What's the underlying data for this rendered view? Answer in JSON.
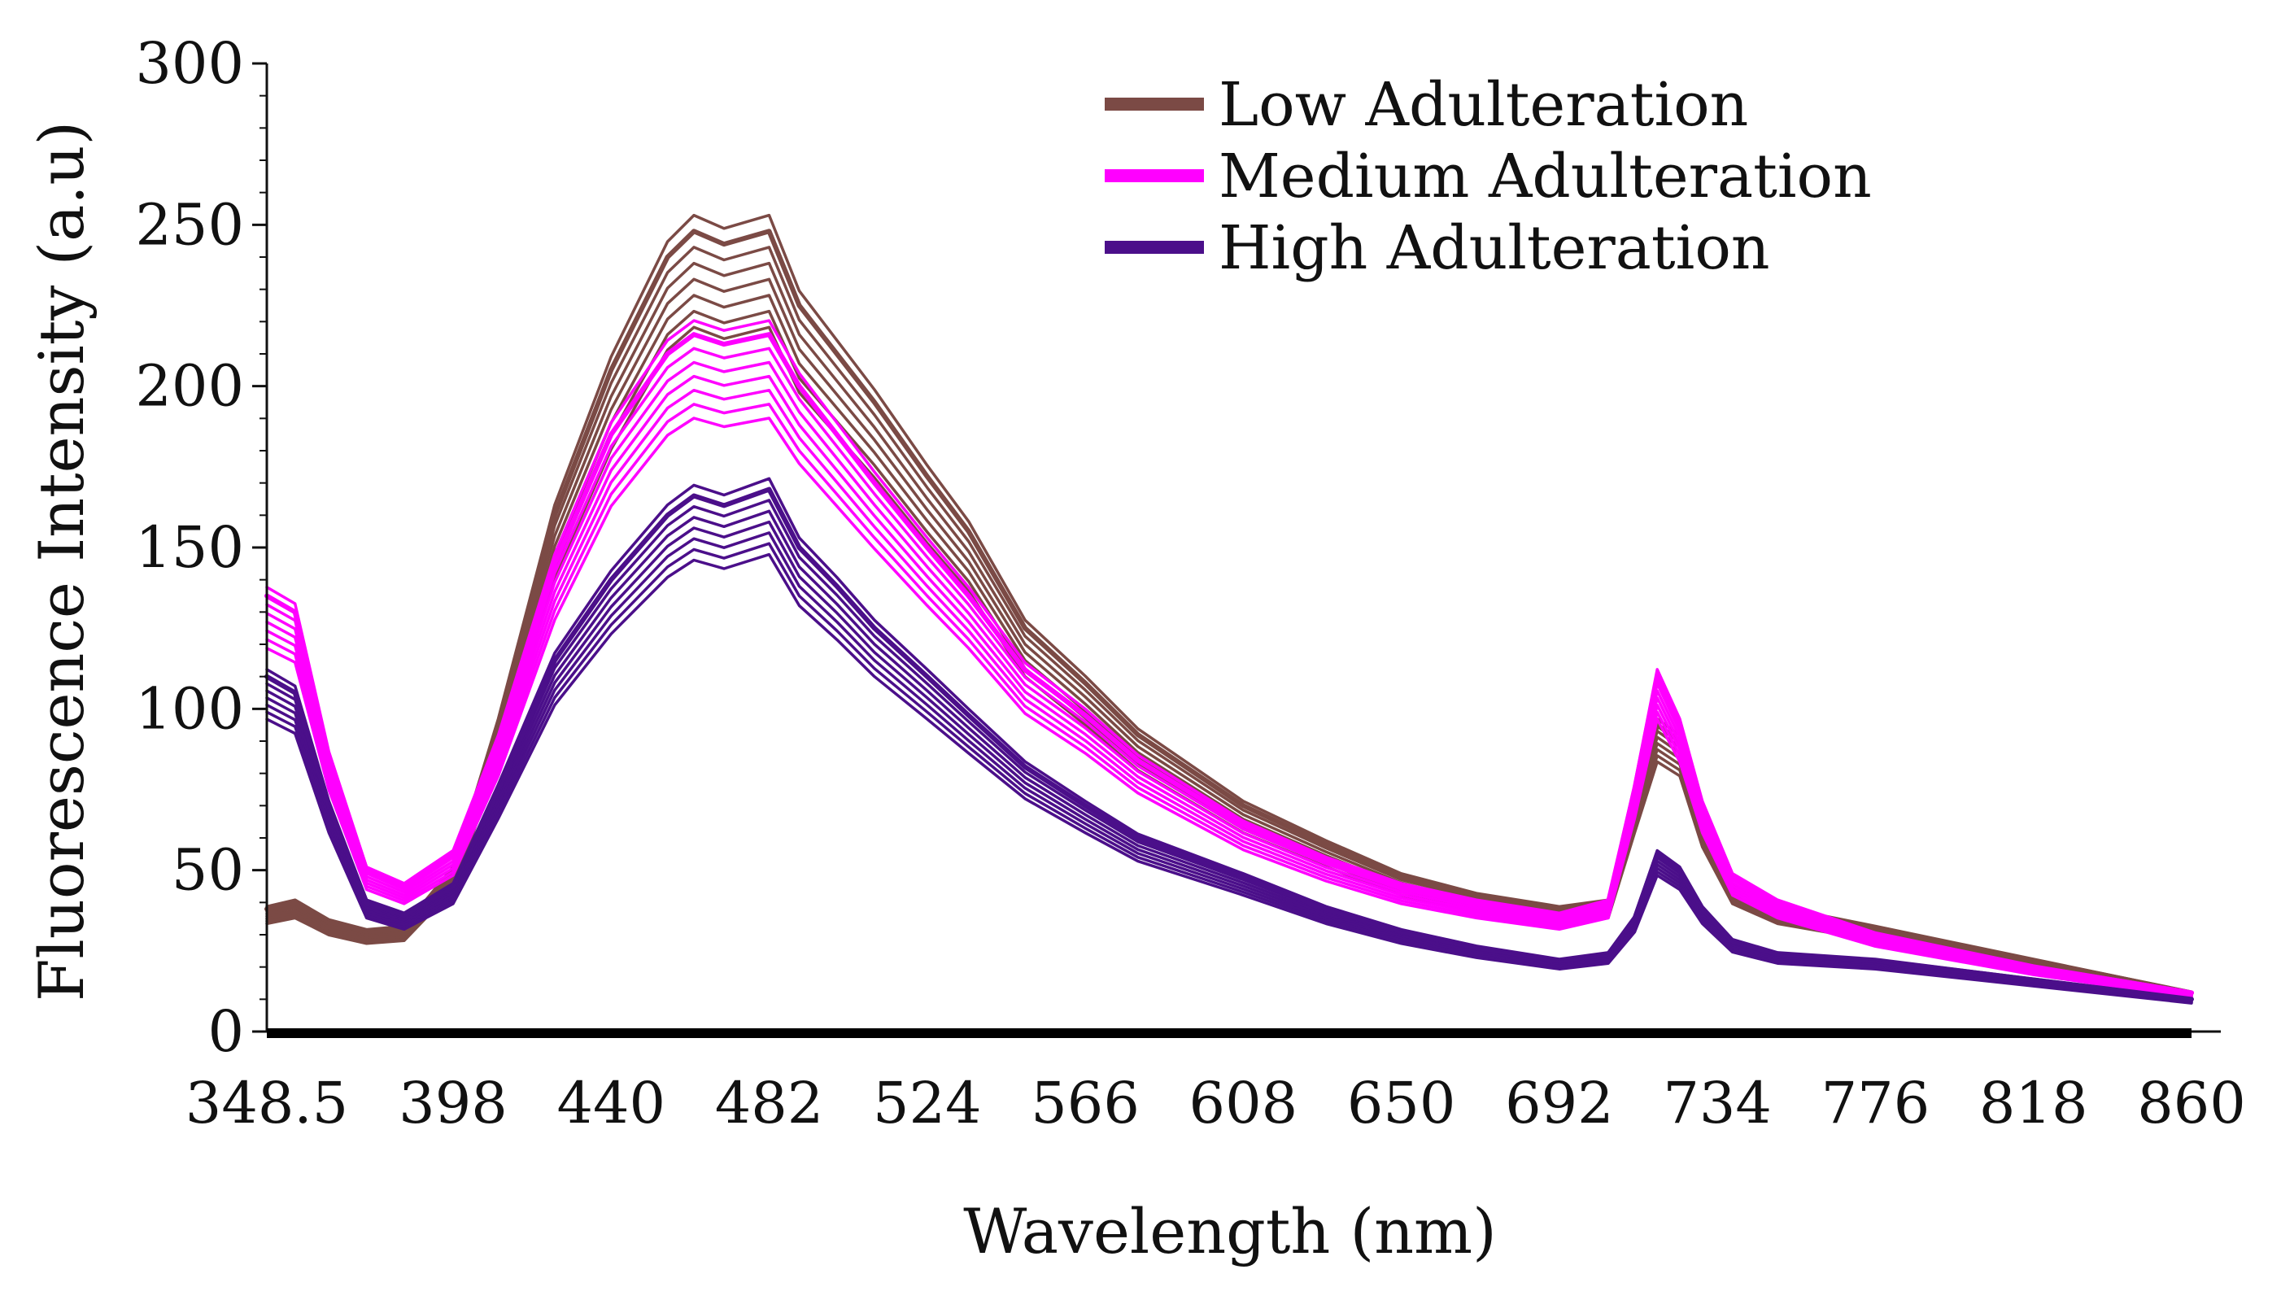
{
  "chart_data": {
    "type": "line",
    "title": "",
    "xlabel": "Wavelength (nm)",
    "ylabel": "Fluorescence Intensity (a.u)",
    "xlim": [
      348.5,
      860
    ],
    "ylim": [
      0,
      300
    ],
    "x_ticks": [
      348.5,
      398,
      440,
      482,
      524,
      566,
      608,
      650,
      692,
      734,
      776,
      818,
      860
    ],
    "x_tick_labels": [
      "348.5",
      "398",
      "440",
      "482",
      "524",
      "566",
      "608",
      "650",
      "692",
      "734",
      "776",
      "818",
      "860"
    ],
    "y_ticks": [
      0,
      50,
      100,
      150,
      200,
      250,
      300
    ],
    "y_tick_labels": [
      "0",
      "50",
      "100",
      "150",
      "200",
      "250",
      "300"
    ],
    "grid": false,
    "legend_position": "top-right",
    "x": [
      348.5,
      356,
      365,
      375,
      385,
      398,
      410,
      425,
      440,
      455,
      462,
      470,
      482,
      490,
      500,
      510,
      524,
      535,
      550,
      566,
      580,
      608,
      630,
      650,
      670,
      692,
      705,
      712,
      718,
      724,
      730,
      738,
      750,
      776,
      818,
      860
    ],
    "series": [
      {
        "name": "Low Adulteration",
        "color": "#7b4a45",
        "values": [
          38,
          40,
          34,
          31,
          32,
          50,
          95,
          160,
          205,
          240,
          248,
          244,
          248,
          225,
          210,
          195,
          172,
          155,
          125,
          108,
          92,
          70,
          58,
          48,
          42,
          38,
          40,
          70,
          95,
          90,
          65,
          45,
          38,
          32,
          22,
          12
        ]
      },
      {
        "name": "Medium Adulteration",
        "color": "#ff00ff",
        "values": [
          135,
          130,
          85,
          50,
          45,
          55,
          90,
          145,
          185,
          210,
          216,
          213,
          216,
          200,
          185,
          170,
          150,
          135,
          112,
          98,
          84,
          64,
          53,
          45,
          40,
          36,
          40,
          75,
          110,
          95,
          70,
          48,
          40,
          30,
          20,
          12
        ]
      },
      {
        "name": "High Adulteration",
        "color": "#4b0f8a",
        "values": [
          110,
          105,
          70,
          40,
          36,
          45,
          75,
          115,
          140,
          160,
          166,
          163,
          168,
          150,
          138,
          125,
          110,
          98,
          82,
          70,
          60,
          48,
          38,
          31,
          26,
          22,
          24,
          35,
          55,
          50,
          38,
          28,
          24,
          22,
          16,
          10
        ]
      }
    ],
    "legend": [
      "Low Adulteration",
      "Medium Adulteration",
      "High Adulteration"
    ]
  }
}
